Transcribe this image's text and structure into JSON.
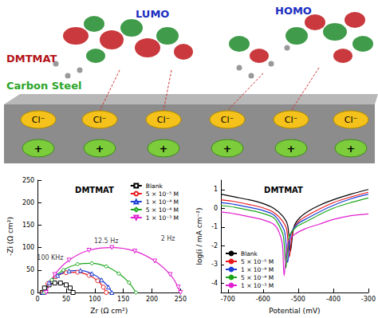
{
  "diagram": {
    "molecule": "DMTMAT",
    "orbitals": [
      "LUMO",
      "HOMO"
    ],
    "surface": "Carbon Steel",
    "anions": [
      "Cl⁻",
      "Cl⁻",
      "Cl⁻",
      "Cl⁻",
      "Cl⁻",
      "Cl⁻"
    ],
    "cations": [
      "+",
      "+",
      "+",
      "+",
      "+",
      "+"
    ]
  },
  "chart_data": [
    {
      "type": "line",
      "title": "DMTMAT",
      "x_label": "Zr (Ω cm²)",
      "y_label": "-Zi (Ω cm²)",
      "xlim": [
        0,
        250
      ],
      "xticks": [
        0,
        50,
        100,
        150,
        200,
        250
      ],
      "ylim": [
        0,
        250
      ],
      "yticks": [
        0,
        50,
        100,
        150,
        200,
        250
      ],
      "grid": false,
      "legend": "upper right",
      "annotations": [
        {
          "text": "100 KHz",
          "x": 22,
          "y": 78
        },
        {
          "text": "12.5 Hz",
          "x": 120,
          "y": 115
        },
        {
          "text": "2 Hz",
          "x": 228,
          "y": 120
        }
      ],
      "series": [
        {
          "name": "Blank",
          "color": "#000000",
          "marker": "square",
          "x": [
            8,
            12,
            20,
            30,
            40,
            50,
            57,
            62
          ],
          "values": [
            0,
            10,
            17,
            21,
            21,
            17,
            10,
            0
          ]
        },
        {
          "name": "5 × 10⁻⁵ M",
          "color": "#e8191e",
          "marker": "circle",
          "x": [
            10,
            18,
            32,
            50,
            70,
            90,
            105,
            115,
            120
          ],
          "values": [
            0,
            20,
            35,
            44,
            45,
            38,
            26,
            12,
            0
          ]
        },
        {
          "name": "1 × 10⁻⁴ M",
          "color": "#1c3fd6",
          "marker": "triangle",
          "x": [
            10,
            20,
            35,
            55,
            75,
            95,
            112,
            124,
            130
          ],
          "values": [
            0,
            22,
            38,
            48,
            49,
            42,
            28,
            12,
            0
          ]
        },
        {
          "name": "5 × 10⁻⁴ M",
          "color": "#1aa51a",
          "marker": "diamond",
          "x": [
            12,
            25,
            45,
            70,
            95,
            120,
            142,
            160,
            172
          ],
          "values": [
            0,
            28,
            50,
            63,
            65,
            58,
            42,
            22,
            0
          ]
        },
        {
          "name": "1 × 10⁻³ M",
          "color": "#e020d0",
          "marker": "triangle_down",
          "x": [
            15,
            30,
            55,
            90,
            130,
            170,
            205,
            232,
            246,
            250
          ],
          "values": [
            0,
            40,
            72,
            94,
            100,
            92,
            70,
            40,
            12,
            0
          ]
        }
      ]
    },
    {
      "type": "line",
      "title": "DMTMAT",
      "x_label": "Potential (mV)",
      "y_label": "log(i / mA cm⁻²)",
      "xlim": [
        -720,
        -300
      ],
      "xticks": [
        -700,
        -600,
        -500,
        -400,
        -300
      ],
      "ylim": [
        -4.5,
        1.5
      ],
      "yticks": [
        -4,
        -3,
        -2,
        -1,
        0,
        1
      ],
      "grid": false,
      "legend": "lower left",
      "series": [
        {
          "name": "Blank",
          "color": "#000000",
          "x": [
            -720,
            -680,
            -640,
            -600,
            -570,
            -545,
            -530,
            -522,
            -512,
            -495,
            -470,
            -440,
            -400,
            -350,
            -300
          ],
          "values": [
            0.75,
            0.6,
            0.45,
            0.25,
            0.0,
            -0.4,
            -0.9,
            -2.3,
            -1.0,
            -0.5,
            -0.15,
            0.15,
            0.45,
            0.75,
            1.0
          ]
        },
        {
          "name": "5 × 10⁻⁵ M",
          "color": "#e8191e",
          "x": [
            -720,
            -680,
            -640,
            -600,
            -570,
            -548,
            -533,
            -525,
            -515,
            -498,
            -470,
            -440,
            -400,
            -350,
            -300
          ],
          "values": [
            0.45,
            0.35,
            0.2,
            0.02,
            -0.22,
            -0.6,
            -1.1,
            -2.6,
            -1.2,
            -0.7,
            -0.35,
            -0.05,
            0.3,
            0.6,
            0.85
          ]
        },
        {
          "name": "1 × 10⁻⁴ M",
          "color": "#1c3fd6",
          "x": [
            -720,
            -680,
            -640,
            -600,
            -570,
            -552,
            -538,
            -530,
            -520,
            -502,
            -470,
            -440,
            -400,
            -350,
            -300
          ],
          "values": [
            0.3,
            0.2,
            0.05,
            -0.12,
            -0.35,
            -0.75,
            -1.3,
            -2.9,
            -1.35,
            -0.85,
            -0.5,
            -0.2,
            0.15,
            0.5,
            0.75
          ]
        },
        {
          "name": "5 × 10⁻⁴ M",
          "color": "#1aa51a",
          "x": [
            -720,
            -680,
            -640,
            -600,
            -570,
            -555,
            -542,
            -535,
            -525,
            -505,
            -470,
            -440,
            -400,
            -350,
            -300
          ],
          "values": [
            0.15,
            0.05,
            -0.1,
            -0.28,
            -0.5,
            -0.9,
            -1.5,
            -3.2,
            -1.5,
            -1.0,
            -0.65,
            -0.35,
            0.0,
            0.3,
            0.55
          ]
        },
        {
          "name": "1 × 10⁻³ M",
          "color": "#e020d0",
          "x": [
            -720,
            -680,
            -640,
            -600,
            -570,
            -556,
            -545,
            -540,
            -530,
            -510,
            -480,
            -440,
            -400,
            -350,
            -300
          ],
          "values": [
            -0.2,
            -0.3,
            -0.45,
            -0.62,
            -0.85,
            -1.2,
            -1.9,
            -3.6,
            -1.9,
            -1.4,
            -1.1,
            -0.85,
            -0.6,
            -0.4,
            -0.3
          ]
        }
      ]
    }
  ]
}
